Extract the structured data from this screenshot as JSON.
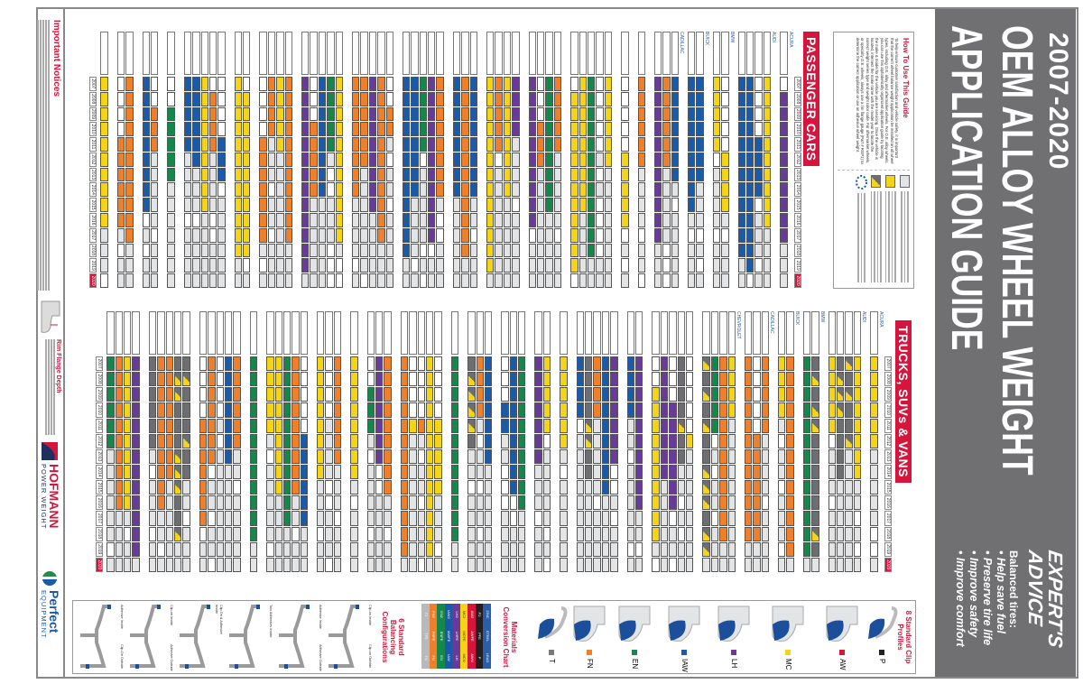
{
  "header": {
    "years": "2007-2020",
    "title_line1": "OEM ALLOY WHEEL WEIGHT",
    "title_line2": "APPLICATION GUIDE",
    "band_color": "#707072"
  },
  "advice": {
    "title_line1": "EXPERT'S",
    "title_line2": "ADVICE",
    "intro": "Balanced tires:",
    "points": [
      "• Help save fuel",
      "• Preserve tire life",
      "• Improve safety",
      "• Improve comfort"
    ]
  },
  "how_to": {
    "title": "How To Use This Guide",
    "text": "To help ensure customer satisfaction and vehicle safety, it is important that the correct wheel balance weight application be installed on all wheel types, including O.E. alloy and aftermarket wheels. For O.E. alloy wheels you can use this alphabetically organized application guide by locating the make & model for the vehicle you are servicing. Once the vehicle is located, intersect the make name with the model year to locate the correct weight series type and weight color code. For aftermarket wheels, or specialty O.E. wheels, always use a rim flange gauge (Part # RGP1) to determine the correct application or use an adhesive wheel weight."
  },
  "sections": {
    "passenger": "PASSENGER CARS",
    "trucks": "TRUCKS, SUVs & VANS"
  },
  "years": [
    "2007",
    "2008",
    "2009",
    "2010",
    "2011",
    "2012",
    "2013",
    "2014",
    "2015",
    "2016",
    "2017",
    "2018",
    "2019",
    "2020"
  ],
  "passenger_makes": [
    "ACURA",
    "AUDI",
    "BMW",
    "BUICK",
    "CADILLAC"
  ],
  "truck_makes": [
    "ACURA",
    "AUDI",
    "BMW",
    "BUICK",
    "CADILLAC",
    "CHEVROLET"
  ],
  "colors": {
    "accent": "#d6143c",
    "P": "#231f20",
    "AW": "#d6143c",
    "MC": "#f5d416",
    "LH": "#6a3a9a",
    "IAW": "#1b5aa8",
    "EN": "#13884a",
    "FN": "#f07f2c",
    "T": "#7a7a7c",
    "adhesive": "#e3e4e6",
    "series_gray": "#6d6e71"
  },
  "clip_profiles": {
    "title": "8 Standard Clip Profiles",
    "items": [
      "P",
      "AW",
      "MC",
      "LH",
      "IAW",
      "EN",
      "FN",
      "T"
    ]
  },
  "materials": {
    "title": "Materials Conversion Chart",
    "header": [
      "ZINC",
      "STEEL",
      "LEAD"
    ],
    "rows": [
      [
        "P2",
        "PFE",
        "P"
      ],
      [
        "AW2",
        "AWFE",
        "AWN"
      ],
      [
        "MC2",
        "MCFE",
        "MCN"
      ],
      [
        "LH2",
        "LHFE",
        "LH"
      ],
      [
        "IAW2",
        "IAWFE",
        "IAW"
      ],
      [
        "EN2",
        "ENFE",
        "EN"
      ],
      [
        "FN2",
        "FNFE",
        "FN"
      ],
      [
        "T2",
        "TFE",
        "TN"
      ]
    ]
  },
  "configurations": {
    "title": "6 Standard Balancing Configurations",
    "items": [
      {
        "inside": "Clip-on Inside",
        "outside": "Clip-on Outside"
      },
      {
        "inside": "Adhesive Inside",
        "outside": "Adhesive Outside"
      },
      {
        "inside": "Two Adhesives Inside",
        "outside": ""
      },
      {
        "inside": "Clip-On & Adhesive Inside",
        "outside": ""
      },
      {
        "inside": "Clip-on Inside",
        "outside": "Adhesive Outside"
      },
      {
        "inside": "Adhesive Inside",
        "outside": "Clip-On Outside"
      }
    ]
  },
  "notices": {
    "title": "Important Notices"
  },
  "rim_flange": {
    "title": "Rim Flange Depth"
  },
  "brands": {
    "hofmann": "HOFMANN",
    "hofmann_sub": "POWER WEIGHT",
    "perfect": "Perfect",
    "perfect_sub": "EQUIPMENT"
  }
}
